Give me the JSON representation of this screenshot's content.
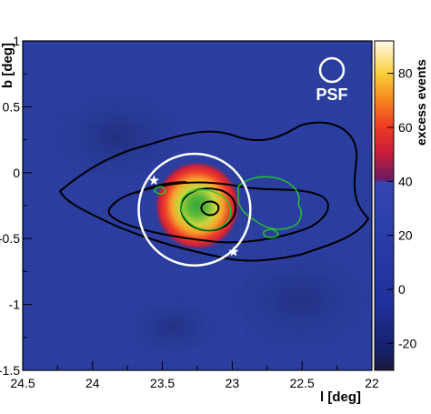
{
  "chart_data": {
    "type": "heatmap",
    "title": "",
    "xlabel": "l [deg]",
    "ylabel": "b [deg]",
    "xlim": [
      24.5,
      22.0
    ],
    "ylim": [
      -1.5,
      1.0
    ],
    "x_ticks": [
      "24.5",
      "24",
      "23.5",
      "23",
      "22.5",
      "22"
    ],
    "y_ticks": [
      "1",
      "0.5",
      "0",
      "-0.5",
      "-1",
      "-1.5"
    ],
    "colorbar": {
      "label": "excess events",
      "range": [
        -30,
        92
      ],
      "ticks": [
        "80",
        "60",
        "40",
        "20",
        "0",
        "-20"
      ]
    },
    "colors": {
      "background": "#2b3d9e",
      "hot_core": "#2fa83a",
      "contour_black": "#000000",
      "contour_green": "#22cc22",
      "circle": "#ffffff"
    },
    "psf_label": "PSF",
    "excess_peak": {
      "l": 23.25,
      "b": -0.25,
      "excess": 90
    },
    "extraction_circle": {
      "l": 23.27,
      "b": -0.28,
      "radius_deg": 0.4
    },
    "stars": [
      {
        "l": 23.56,
        "b": -0.06
      },
      {
        "l": 22.99,
        "b": -0.6
      }
    ]
  }
}
